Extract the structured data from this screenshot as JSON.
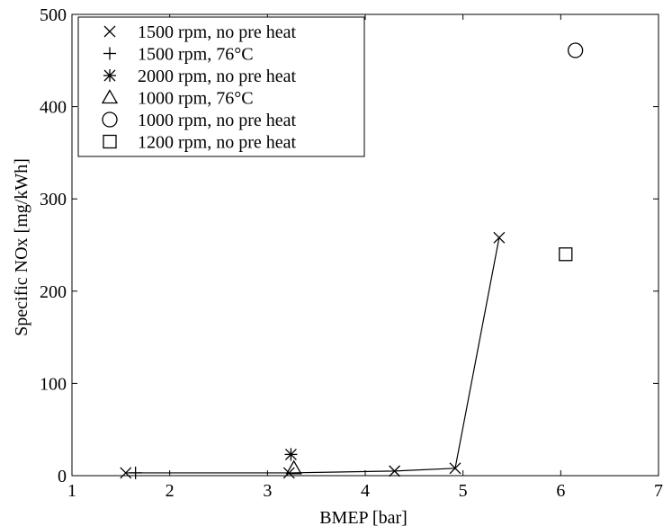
{
  "chart_data": {
    "type": "scatter",
    "xlabel": "BMEP [bar]",
    "ylabel": "Specific NOx [mg/kWh]",
    "xlim": [
      1,
      7
    ],
    "ylim": [
      0,
      500
    ],
    "xticks": [
      1,
      2,
      3,
      4,
      5,
      6,
      7
    ],
    "yticks": [
      0,
      100,
      200,
      300,
      400,
      500
    ],
    "grid": false,
    "legend_position": "top-left",
    "series": [
      {
        "name": "1500 rpm, no pre heat",
        "marker": "x",
        "line": true,
        "points": [
          [
            1.55,
            3
          ],
          [
            3.22,
            3
          ],
          [
            4.3,
            5
          ],
          [
            4.92,
            8
          ],
          [
            5.37,
            258
          ]
        ]
      },
      {
        "name": "1500 rpm, 76°C",
        "marker": "plus",
        "line": false,
        "points": [
          [
            1.65,
            3
          ]
        ]
      },
      {
        "name": "2000 rpm, no pre heat",
        "marker": "star",
        "line": false,
        "points": [
          [
            3.24,
            23
          ]
        ]
      },
      {
        "name": "1000 rpm, 76°C",
        "marker": "triangle",
        "line": false,
        "points": [
          [
            3.27,
            8
          ]
        ]
      },
      {
        "name": "1000 rpm, no pre heat",
        "marker": "circle",
        "line": false,
        "points": [
          [
            6.15,
            461
          ]
        ]
      },
      {
        "name": "1200 rpm, no pre heat",
        "marker": "square",
        "line": false,
        "points": [
          [
            6.05,
            240
          ]
        ]
      }
    ]
  }
}
